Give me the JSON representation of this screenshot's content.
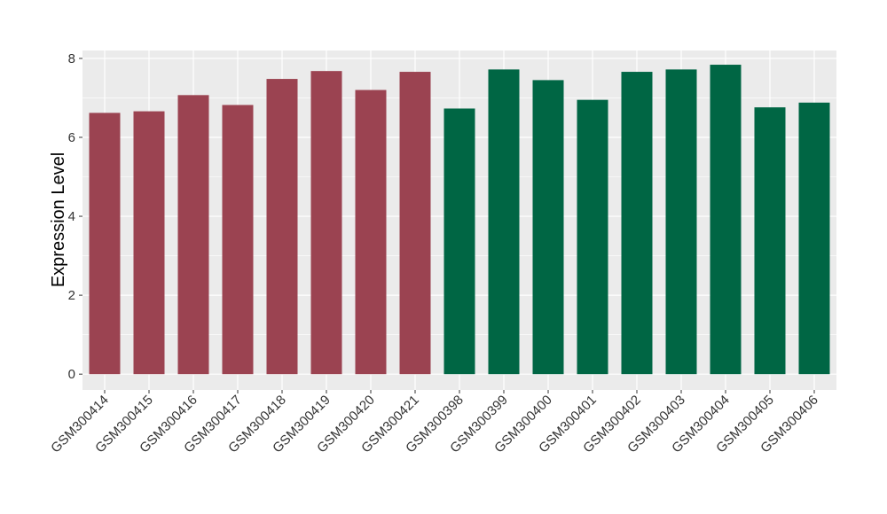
{
  "chart_data": {
    "type": "bar",
    "title": "",
    "xlabel": "",
    "ylabel": "Expression Level",
    "ylim": [
      -0.4,
      8.2
    ],
    "yticks": [
      0,
      2,
      4,
      6,
      8
    ],
    "grid": true,
    "legend": "none",
    "colors": {
      "group1": "#9b4351",
      "group2": "#006644",
      "panel": "#ebebeb",
      "gridline": "#ffffff"
    },
    "categories": [
      "GSM300414",
      "GSM300415",
      "GSM300416",
      "GSM300417",
      "GSM300418",
      "GSM300419",
      "GSM300420",
      "GSM300421",
      "GSM300398",
      "GSM300399",
      "GSM300400",
      "GSM300401",
      "GSM300402",
      "GSM300403",
      "GSM300404",
      "GSM300405",
      "GSM300406"
    ],
    "values": [
      6.62,
      6.66,
      7.07,
      6.82,
      7.48,
      7.68,
      7.2,
      7.66,
      6.73,
      7.72,
      7.45,
      6.95,
      7.66,
      7.72,
      7.84,
      6.76,
      6.88
    ],
    "bar_groups": [
      "group1",
      "group1",
      "group1",
      "group1",
      "group1",
      "group1",
      "group1",
      "group1",
      "group2",
      "group2",
      "group2",
      "group2",
      "group2",
      "group2",
      "group2",
      "group2",
      "group2"
    ]
  }
}
